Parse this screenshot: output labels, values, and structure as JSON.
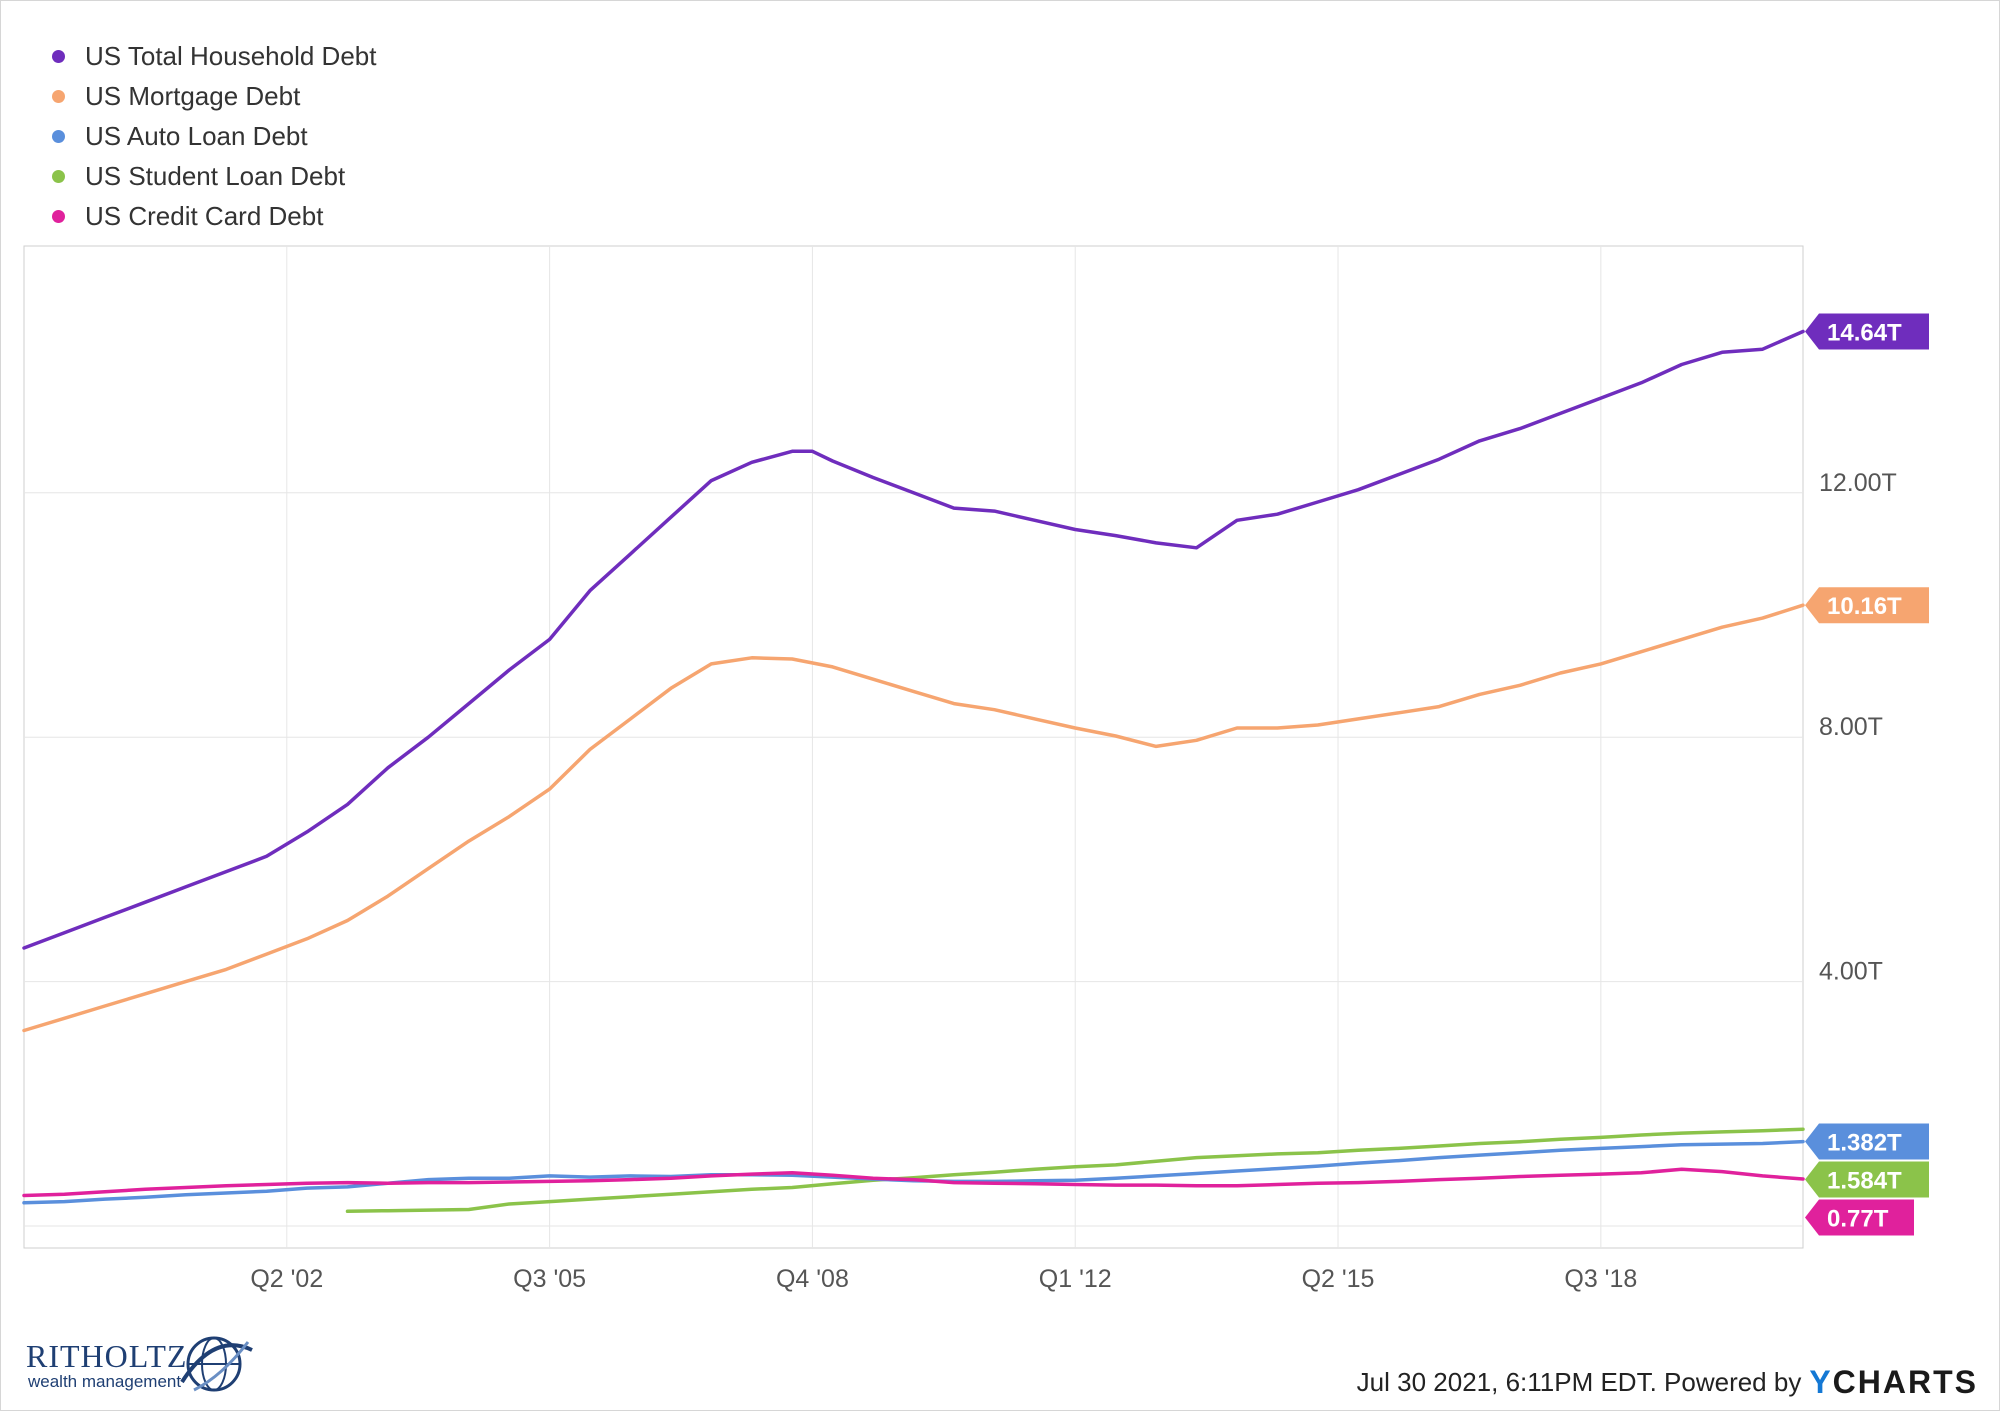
{
  "chart_data": {
    "type": "line",
    "x_ticks": [
      "Q2 '02",
      "Q3 '05",
      "Q4 '08",
      "Q1 '12",
      "Q2 '15",
      "Q3 '18"
    ],
    "y_ticks": [
      "4.00T",
      "8.00T",
      "12.00T"
    ],
    "ylim": [
      0,
      16
    ],
    "x_range": [
      "Q1 1999",
      "Q1 2021"
    ],
    "grid": true,
    "legend_position": "top-left",
    "series": [
      {
        "name": "US Total Household Debt",
        "color": "#6f2dbd",
        "end_label": "14.64T",
        "values": [
          [
            1999.0,
            4.55
          ],
          [
            1999.5,
            4.8
          ],
          [
            2000.0,
            5.05
          ],
          [
            2000.5,
            5.3
          ],
          [
            2001.0,
            5.55
          ],
          [
            2001.5,
            5.8
          ],
          [
            2002.0,
            6.05
          ],
          [
            2002.5,
            6.45
          ],
          [
            2003.0,
            6.9
          ],
          [
            2003.5,
            7.5
          ],
          [
            2004.0,
            8.0
          ],
          [
            2004.5,
            8.55
          ],
          [
            2005.0,
            9.1
          ],
          [
            2005.5,
            9.6
          ],
          [
            2006.0,
            10.4
          ],
          [
            2006.5,
            11.0
          ],
          [
            2007.0,
            11.6
          ],
          [
            2007.5,
            12.2
          ],
          [
            2008.0,
            12.5
          ],
          [
            2008.5,
            12.68
          ],
          [
            2008.75,
            12.68
          ],
          [
            2009.0,
            12.52
          ],
          [
            2009.5,
            12.25
          ],
          [
            2010.0,
            12.0
          ],
          [
            2010.5,
            11.75
          ],
          [
            2011.0,
            11.7
          ],
          [
            2011.5,
            11.55
          ],
          [
            2012.0,
            11.4
          ],
          [
            2012.5,
            11.3
          ],
          [
            2013.0,
            11.18
          ],
          [
            2013.5,
            11.1
          ],
          [
            2014.0,
            11.55
          ],
          [
            2014.5,
            11.65
          ],
          [
            2015.0,
            11.85
          ],
          [
            2015.5,
            12.05
          ],
          [
            2016.0,
            12.3
          ],
          [
            2016.5,
            12.55
          ],
          [
            2017.0,
            12.85
          ],
          [
            2017.5,
            13.05
          ],
          [
            2018.0,
            13.3
          ],
          [
            2018.5,
            13.55
          ],
          [
            2019.0,
            13.8
          ],
          [
            2019.5,
            14.1
          ],
          [
            2020.0,
            14.3
          ],
          [
            2020.5,
            14.35
          ],
          [
            2021.0,
            14.64
          ]
        ]
      },
      {
        "name": "US Mortgage Debt",
        "color": "#f6a570",
        "end_label": "10.16T",
        "values": [
          [
            1999.0,
            3.2
          ],
          [
            1999.5,
            3.4
          ],
          [
            2000.0,
            3.6
          ],
          [
            2000.5,
            3.8
          ],
          [
            2001.0,
            4.0
          ],
          [
            2001.5,
            4.2
          ],
          [
            2002.0,
            4.45
          ],
          [
            2002.5,
            4.7
          ],
          [
            2003.0,
            5.0
          ],
          [
            2003.5,
            5.4
          ],
          [
            2004.0,
            5.85
          ],
          [
            2004.5,
            6.3
          ],
          [
            2005.0,
            6.7
          ],
          [
            2005.5,
            7.15
          ],
          [
            2006.0,
            7.8
          ],
          [
            2006.5,
            8.3
          ],
          [
            2007.0,
            8.8
          ],
          [
            2007.5,
            9.2
          ],
          [
            2008.0,
            9.3
          ],
          [
            2008.5,
            9.28
          ],
          [
            2009.0,
            9.15
          ],
          [
            2009.5,
            8.95
          ],
          [
            2010.0,
            8.75
          ],
          [
            2010.5,
            8.55
          ],
          [
            2011.0,
            8.45
          ],
          [
            2011.5,
            8.3
          ],
          [
            2012.0,
            8.15
          ],
          [
            2012.5,
            8.02
          ],
          [
            2013.0,
            7.85
          ],
          [
            2013.5,
            7.95
          ],
          [
            2014.0,
            8.15
          ],
          [
            2014.5,
            8.15
          ],
          [
            2015.0,
            8.2
          ],
          [
            2015.5,
            8.3
          ],
          [
            2016.0,
            8.4
          ],
          [
            2016.5,
            8.5
          ],
          [
            2017.0,
            8.7
          ],
          [
            2017.5,
            8.85
          ],
          [
            2018.0,
            9.05
          ],
          [
            2018.5,
            9.2
          ],
          [
            2019.0,
            9.4
          ],
          [
            2019.5,
            9.6
          ],
          [
            2020.0,
            9.8
          ],
          [
            2020.5,
            9.95
          ],
          [
            2021.0,
            10.16
          ]
        ]
      },
      {
        "name": "US Auto Loan Debt",
        "color": "#5a8fdc",
        "end_label": "1.382T",
        "values": [
          [
            1999.0,
            0.38
          ],
          [
            1999.5,
            0.4
          ],
          [
            2000.0,
            0.44
          ],
          [
            2000.5,
            0.47
          ],
          [
            2001.0,
            0.51
          ],
          [
            2001.5,
            0.54
          ],
          [
            2002.0,
            0.57
          ],
          [
            2002.5,
            0.62
          ],
          [
            2003.0,
            0.64
          ],
          [
            2003.5,
            0.7
          ],
          [
            2004.0,
            0.76
          ],
          [
            2004.5,
            0.78
          ],
          [
            2005.0,
            0.78
          ],
          [
            2005.5,
            0.82
          ],
          [
            2006.0,
            0.8
          ],
          [
            2006.5,
            0.82
          ],
          [
            2007.0,
            0.81
          ],
          [
            2007.5,
            0.84
          ],
          [
            2008.0,
            0.84
          ],
          [
            2008.5,
            0.83
          ],
          [
            2009.0,
            0.8
          ],
          [
            2009.5,
            0.77
          ],
          [
            2010.0,
            0.74
          ],
          [
            2010.5,
            0.73
          ],
          [
            2011.0,
            0.73
          ],
          [
            2011.5,
            0.74
          ],
          [
            2012.0,
            0.75
          ],
          [
            2012.5,
            0.78
          ],
          [
            2013.0,
            0.82
          ],
          [
            2013.5,
            0.86
          ],
          [
            2014.0,
            0.9
          ],
          [
            2014.5,
            0.94
          ],
          [
            2015.0,
            0.98
          ],
          [
            2015.5,
            1.03
          ],
          [
            2016.0,
            1.07
          ],
          [
            2016.5,
            1.12
          ],
          [
            2017.0,
            1.16
          ],
          [
            2017.5,
            1.2
          ],
          [
            2018.0,
            1.24
          ],
          [
            2018.5,
            1.27
          ],
          [
            2019.0,
            1.3
          ],
          [
            2019.5,
            1.33
          ],
          [
            2020.0,
            1.34
          ],
          [
            2020.5,
            1.35
          ],
          [
            2021.0,
            1.382
          ]
        ]
      },
      {
        "name": "US Student Loan Debt",
        "color": "#8bc34a",
        "end_label": "1.584T",
        "values": [
          [
            2003.0,
            0.24
          ],
          [
            2003.5,
            0.25
          ],
          [
            2004.0,
            0.26
          ],
          [
            2004.5,
            0.27
          ],
          [
            2005.0,
            0.36
          ],
          [
            2005.5,
            0.4
          ],
          [
            2006.0,
            0.44
          ],
          [
            2006.5,
            0.48
          ],
          [
            2007.0,
            0.52
          ],
          [
            2007.5,
            0.56
          ],
          [
            2008.0,
            0.6
          ],
          [
            2008.5,
            0.63
          ],
          [
            2009.0,
            0.69
          ],
          [
            2009.5,
            0.75
          ],
          [
            2010.0,
            0.79
          ],
          [
            2010.5,
            0.84
          ],
          [
            2011.0,
            0.88
          ],
          [
            2011.5,
            0.93
          ],
          [
            2012.0,
            0.97
          ],
          [
            2012.5,
            1.0
          ],
          [
            2013.0,
            1.06
          ],
          [
            2013.5,
            1.12
          ],
          [
            2014.0,
            1.15
          ],
          [
            2014.5,
            1.18
          ],
          [
            2015.0,
            1.2
          ],
          [
            2015.5,
            1.24
          ],
          [
            2016.0,
            1.27
          ],
          [
            2016.5,
            1.31
          ],
          [
            2017.0,
            1.35
          ],
          [
            2017.5,
            1.38
          ],
          [
            2018.0,
            1.42
          ],
          [
            2018.5,
            1.45
          ],
          [
            2019.0,
            1.49
          ],
          [
            2019.5,
            1.52
          ],
          [
            2020.0,
            1.54
          ],
          [
            2020.5,
            1.56
          ],
          [
            2021.0,
            1.584
          ]
        ]
      },
      {
        "name": "US Credit Card Debt",
        "color": "#e0219c",
        "end_label": "0.77T",
        "values": [
          [
            1999.0,
            0.5
          ],
          [
            1999.5,
            0.52
          ],
          [
            2000.0,
            0.56
          ],
          [
            2000.5,
            0.6
          ],
          [
            2001.0,
            0.63
          ],
          [
            2001.5,
            0.66
          ],
          [
            2002.0,
            0.68
          ],
          [
            2002.5,
            0.7
          ],
          [
            2003.0,
            0.71
          ],
          [
            2003.5,
            0.7
          ],
          [
            2004.0,
            0.71
          ],
          [
            2004.5,
            0.71
          ],
          [
            2005.0,
            0.72
          ],
          [
            2005.5,
            0.73
          ],
          [
            2006.0,
            0.74
          ],
          [
            2006.5,
            0.76
          ],
          [
            2007.0,
            0.78
          ],
          [
            2007.5,
            0.82
          ],
          [
            2008.0,
            0.85
          ],
          [
            2008.5,
            0.87
          ],
          [
            2009.0,
            0.83
          ],
          [
            2009.5,
            0.78
          ],
          [
            2010.0,
            0.76
          ],
          [
            2010.5,
            0.71
          ],
          [
            2011.0,
            0.7
          ],
          [
            2011.5,
            0.69
          ],
          [
            2012.0,
            0.68
          ],
          [
            2012.5,
            0.67
          ],
          [
            2013.0,
            0.67
          ],
          [
            2013.5,
            0.66
          ],
          [
            2014.0,
            0.66
          ],
          [
            2014.5,
            0.68
          ],
          [
            2015.0,
            0.7
          ],
          [
            2015.5,
            0.71
          ],
          [
            2016.0,
            0.73
          ],
          [
            2016.5,
            0.76
          ],
          [
            2017.0,
            0.78
          ],
          [
            2017.5,
            0.81
          ],
          [
            2018.0,
            0.83
          ],
          [
            2018.5,
            0.85
          ],
          [
            2019.0,
            0.87
          ],
          [
            2019.5,
            0.93
          ],
          [
            2020.0,
            0.89
          ],
          [
            2020.5,
            0.82
          ],
          [
            2021.0,
            0.77
          ]
        ]
      }
    ]
  },
  "footer": {
    "timestamp": "Jul 30 2021, 6:11PM EDT. Powered by",
    "brand_letter": "Y",
    "brand": "CHARTS"
  },
  "logo": {
    "name": "RITHOLTZ",
    "subtitle": "wealth management"
  }
}
